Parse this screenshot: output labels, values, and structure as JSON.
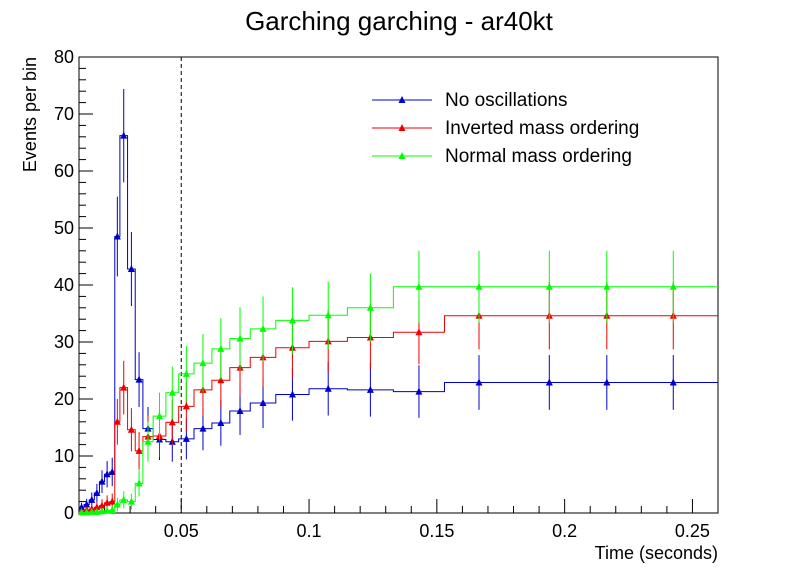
{
  "chart_data": {
    "type": "line",
    "title": "Garching garching - ar40kt",
    "xlabel": "Time (seconds)",
    "ylabel": "Events per bin",
    "xlim": [
      0.01,
      0.26
    ],
    "ylim": [
      0,
      80
    ],
    "x_ticks": [
      0.05,
      0.1,
      0.15,
      0.2,
      0.25
    ],
    "x_tick_labels": [
      "0.05",
      "0.1",
      "0.15",
      "0.2",
      "0.25"
    ],
    "y_ticks": [
      0,
      10,
      20,
      30,
      40,
      50,
      60,
      70,
      80
    ],
    "y_tick_labels": [
      "0",
      "10",
      "20",
      "30",
      "40",
      "50",
      "60",
      "70",
      "80"
    ],
    "grid": false,
    "legend_position": "top-right",
    "reference_line_x": 0.05,
    "bin_edges": [
      0.01,
      0.012,
      0.014,
      0.016,
      0.018,
      0.02,
      0.022,
      0.024,
      0.026,
      0.029,
      0.032,
      0.035,
      0.039,
      0.044,
      0.049,
      0.055,
      0.062,
      0.069,
      0.077,
      0.087,
      0.1,
      0.115,
      0.133,
      0.153,
      0.18,
      0.208,
      0.225,
      0.26
    ],
    "series": [
      {
        "name": "No oscillations",
        "color": "#0000cc",
        "x": [
          0.011,
          0.013,
          0.015,
          0.017,
          0.019,
          0.021,
          0.023,
          0.025,
          0.0275,
          0.0305,
          0.0335,
          0.037,
          0.0415,
          0.0465,
          0.052,
          0.0585,
          0.0655,
          0.073,
          0.082,
          0.0935,
          0.1075,
          0.124,
          0.143,
          0.1665,
          0.194,
          0.2165,
          0.2425
        ],
        "y": [
          1.0,
          1.5,
          2.3,
          3.5,
          5.5,
          6.8,
          7.2,
          48.5,
          66.2,
          42.8,
          23.4,
          14.8,
          12.9,
          12.5,
          13.0,
          14.8,
          15.8,
          17.9,
          19.3,
          20.8,
          21.8,
          21.6,
          21.3,
          22.9,
          22.9,
          22.9,
          22.9
        ],
        "err": [
          0.8,
          1.0,
          1.3,
          1.6,
          2.0,
          2.3,
          2.5,
          7.0,
          8.2,
          6.5,
          4.8,
          3.8,
          3.6,
          3.5,
          3.6,
          3.8,
          4.0,
          4.2,
          4.4,
          4.6,
          4.7,
          4.7,
          4.6,
          4.8,
          4.8,
          4.8,
          4.8
        ]
      },
      {
        "name": "Inverted mass ordering",
        "color": "#ee0000",
        "x": [
          0.011,
          0.013,
          0.015,
          0.017,
          0.019,
          0.021,
          0.023,
          0.025,
          0.0275,
          0.0305,
          0.0335,
          0.037,
          0.0415,
          0.0465,
          0.052,
          0.0585,
          0.0655,
          0.073,
          0.082,
          0.0935,
          0.1075,
          0.124,
          0.143,
          0.1665,
          0.194,
          0.2165,
          0.2425
        ],
        "y": [
          0.3,
          0.5,
          0.7,
          1.0,
          1.3,
          1.8,
          2.0,
          16.0,
          22.0,
          14.6,
          10.9,
          13.4,
          13.5,
          15.9,
          18.7,
          21.6,
          23.3,
          25.5,
          27.3,
          29.0,
          30.1,
          30.8,
          31.7,
          34.6,
          34.6,
          34.6,
          34.6
        ],
        "err": [
          0.5,
          0.6,
          0.7,
          0.9,
          1.1,
          1.3,
          1.4,
          4.0,
          4.7,
          3.8,
          3.3,
          3.7,
          3.7,
          4.0,
          4.3,
          4.6,
          4.8,
          5.0,
          5.2,
          5.4,
          5.5,
          5.5,
          5.6,
          5.9,
          5.9,
          5.9,
          5.9
        ]
      },
      {
        "name": "Normal mass ordering",
        "color": "#00ff00",
        "x": [
          0.011,
          0.013,
          0.015,
          0.017,
          0.019,
          0.021,
          0.023,
          0.025,
          0.0275,
          0.0305,
          0.0335,
          0.037,
          0.0415,
          0.0465,
          0.052,
          0.0585,
          0.0655,
          0.073,
          0.082,
          0.0935,
          0.1075,
          0.124,
          0.143,
          0.1665,
          0.194,
          0.2165,
          0.2425
        ],
        "y": [
          0.1,
          0.1,
          0.2,
          0.2,
          0.3,
          0.4,
          0.5,
          1.5,
          2.3,
          2.0,
          5.2,
          12.5,
          17.0,
          21.1,
          24.4,
          26.3,
          28.8,
          30.6,
          32.3,
          33.8,
          34.7,
          36.0,
          39.7,
          39.7,
          39.7,
          39.7,
          39.7
        ],
        "err": [
          0.3,
          0.3,
          0.4,
          0.4,
          0.5,
          0.6,
          0.7,
          1.2,
          1.5,
          1.4,
          2.3,
          3.5,
          4.1,
          4.6,
          4.9,
          5.1,
          5.4,
          5.5,
          5.7,
          5.8,
          5.9,
          6.0,
          6.3,
          6.3,
          6.3,
          6.3,
          6.3
        ]
      }
    ]
  }
}
